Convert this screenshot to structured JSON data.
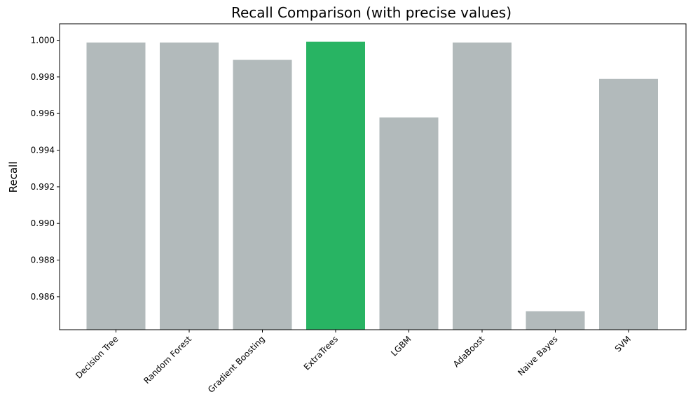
{
  "chart_data": {
    "type": "bar",
    "title": "Recall Comparison (with precise values)",
    "xlabel": "",
    "ylabel": "Recall",
    "categories": [
      "Decision Tree",
      "Random Forest",
      "Gradient Boosting",
      "ExtraTrees",
      "LGBM",
      "AdaBoost",
      "Naive Bayes",
      "SVM"
    ],
    "values": [
      0.99988,
      0.99988,
      0.99893,
      0.99992,
      0.99579,
      0.99988,
      0.98521,
      0.99789
    ],
    "ylim": [
      0.9842,
      1.0009
    ],
    "yticks": [
      "0.986",
      "0.988",
      "0.990",
      "0.992",
      "0.994",
      "0.996",
      "0.998",
      "1.000"
    ],
    "grid": false,
    "highlight_index": 3,
    "colors": {
      "default": "#b2babb",
      "highlight": "#28b463"
    }
  }
}
